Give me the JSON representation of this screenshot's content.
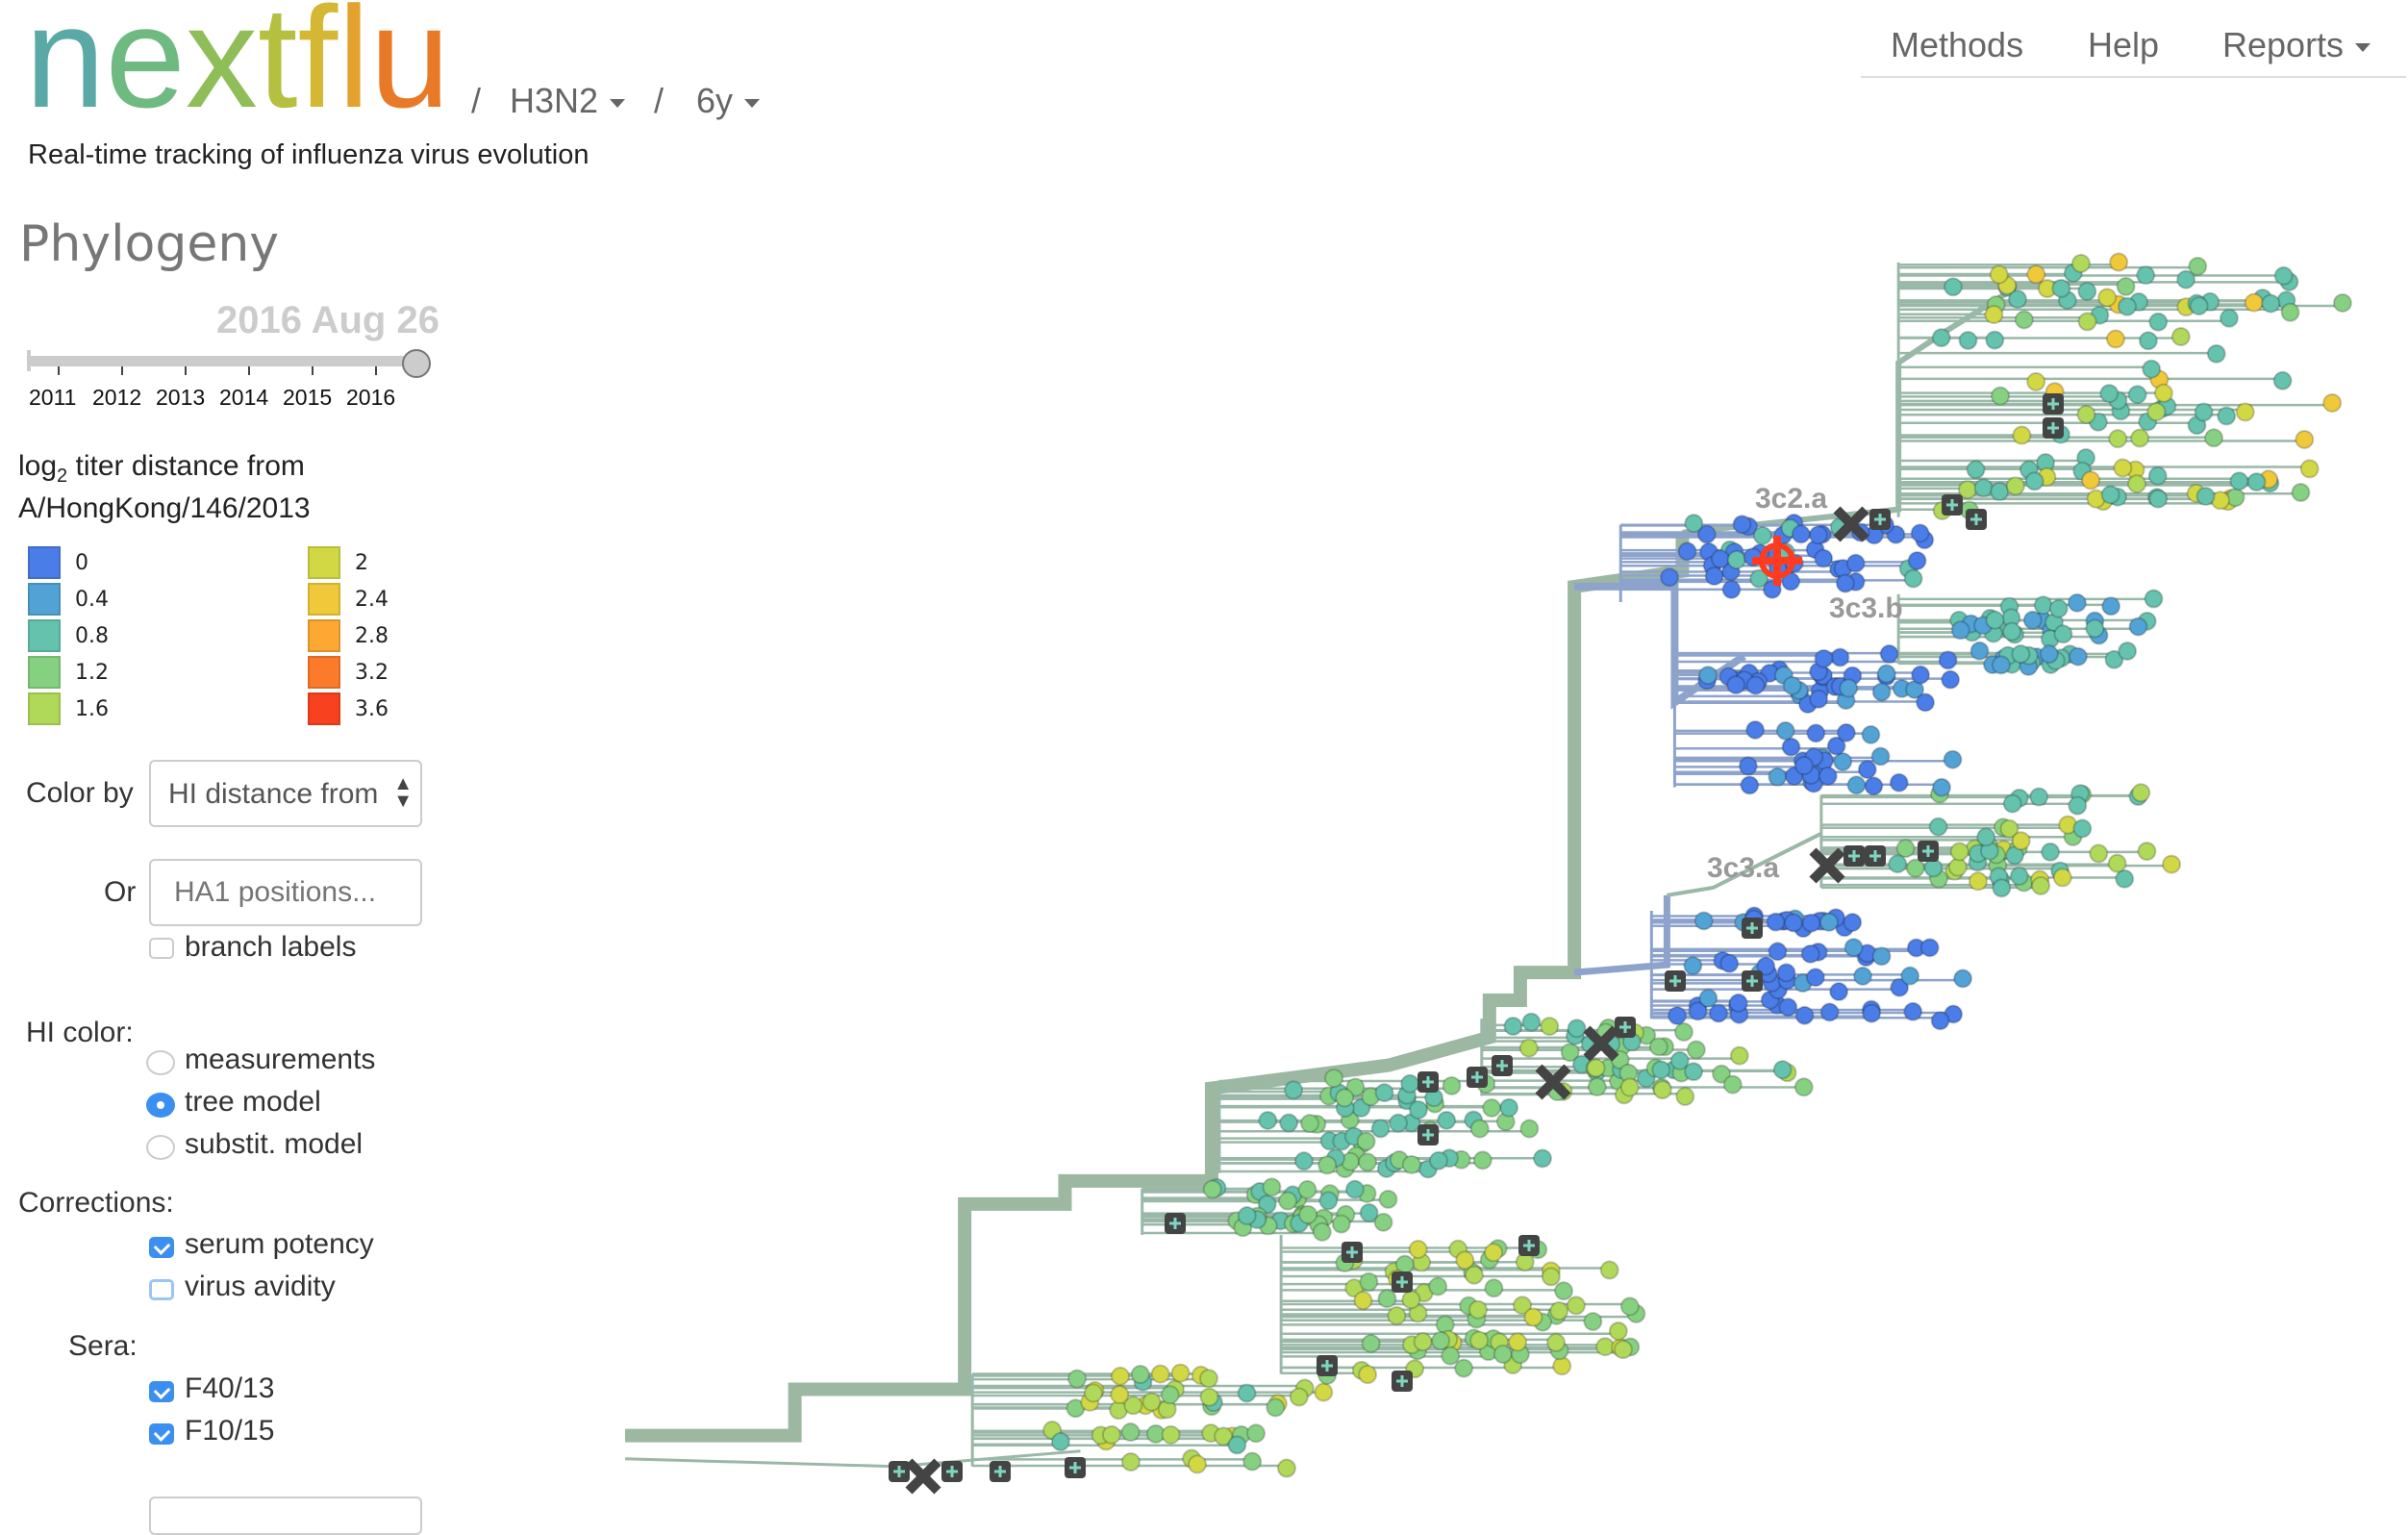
{
  "header": {
    "logo_letters": [
      {
        "ch": "n",
        "color": "#5aa9a6"
      },
      {
        "ch": "e",
        "color": "#6fba80"
      },
      {
        "ch": "x",
        "color": "#8fbe58"
      },
      {
        "ch": "t",
        "color": "#b5bf40"
      },
      {
        "ch": "f",
        "color": "#d4b833"
      },
      {
        "ch": "l",
        "color": "#e2a22d"
      },
      {
        "ch": "u",
        "color": "#e87a27"
      }
    ],
    "logo_text": "nextflu",
    "sep": "/",
    "lineage": "H3N2",
    "resolution": "6y",
    "subtitle": "Real-time tracking of influenza virus evolution"
  },
  "nav": {
    "methods": "Methods",
    "help": "Help",
    "reports": "Reports"
  },
  "sidebar": {
    "title": "Phylogeny",
    "date": "2016 Aug 26",
    "slider_years": [
      "2011",
      "2012",
      "2013",
      "2014",
      "2015",
      "2016"
    ],
    "slider_value": "2016 Aug 26",
    "legend_title_prefix": "log",
    "legend_title_sub": "2",
    "legend_title_rest": " titer distance from",
    "legend_title_line2": "A/HongKong/146/2013",
    "legend": [
      {
        "label": "0",
        "color": "#4a7de8"
      },
      {
        "label": "0.4",
        "color": "#52a2d6"
      },
      {
        "label": "0.8",
        "color": "#64c2ad"
      },
      {
        "label": "1.2",
        "color": "#86d181"
      },
      {
        "label": "1.6",
        "color": "#b0d95a"
      },
      {
        "label": "2",
        "color": "#d2d844"
      },
      {
        "label": "2.4",
        "color": "#f0c93a"
      },
      {
        "label": "2.8",
        "color": "#fca832"
      },
      {
        "label": "3.2",
        "color": "#fb7b2a"
      },
      {
        "label": "3.6",
        "color": "#f8421f"
      }
    ],
    "color_by_label": "Color by",
    "color_by_value": "HI distance from",
    "or_label": "Or",
    "positions_placeholder": "HA1 positions...",
    "branch_labels": "branch labels",
    "branch_labels_checked": false,
    "hi_color_label": "HI color:",
    "hi_color_options": [
      {
        "label": "measurements",
        "selected": false
      },
      {
        "label": "tree model",
        "selected": true
      },
      {
        "label": "substit. model",
        "selected": false
      }
    ],
    "corrections_label": "Corrections:",
    "corrections": [
      {
        "label": "serum potency",
        "checked": true
      },
      {
        "label": "virus avidity",
        "checked": false
      }
    ],
    "sera_label": "Sera:",
    "sera": [
      {
        "label": "F40/13",
        "checked": true
      },
      {
        "label": "F10/15",
        "checked": true
      }
    ]
  },
  "tree": {
    "clade_labels": [
      "3c2.a",
      "3c3.b",
      "3c3.a"
    ],
    "reference_strain_marker": "target-icon",
    "branch_color": "#9ab8a8",
    "blue_branch_color": "#8da3cc",
    "marker_color": "#444444",
    "highlight_color": "#ff3b1f"
  }
}
